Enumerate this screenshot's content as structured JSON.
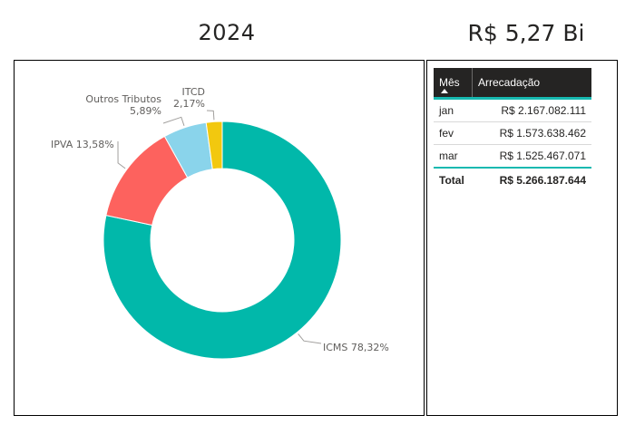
{
  "header": {
    "year_title": "2024",
    "kpi_value": "R$ 5,27 Bi"
  },
  "chart_data": {
    "type": "pie",
    "variant": "donut",
    "categories": [
      "ICMS",
      "IPVA",
      "Outros Tributos",
      "ITCD"
    ],
    "values": [
      78.32,
      13.58,
      5.89,
      2.17
    ],
    "unit": "%",
    "colors": [
      "#01B8AA",
      "#FD625E",
      "#8AD4EB",
      "#F2C80F"
    ],
    "labels": [
      {
        "lines": [
          "ICMS 78,32%"
        ]
      },
      {
        "lines": [
          "IPVA 13,58%"
        ]
      },
      {
        "lines": [
          "Outros Tributos",
          "5,89%"
        ]
      },
      {
        "lines": [
          "ITCD",
          "2,17%"
        ]
      }
    ]
  },
  "table": {
    "headers": {
      "month": "Mês",
      "revenue": "Arrecadação"
    },
    "rows": [
      {
        "month": "jan",
        "revenue": "R$ 2.167.082.111"
      },
      {
        "month": "fev",
        "revenue": "R$ 1.573.638.462"
      },
      {
        "month": "mar",
        "revenue": "R$ 1.525.467.071"
      }
    ],
    "total": {
      "label": "Total",
      "revenue": "R$ 5.266.187.644"
    },
    "accent_color": "#17b9b0",
    "header_bg": "#252423"
  }
}
